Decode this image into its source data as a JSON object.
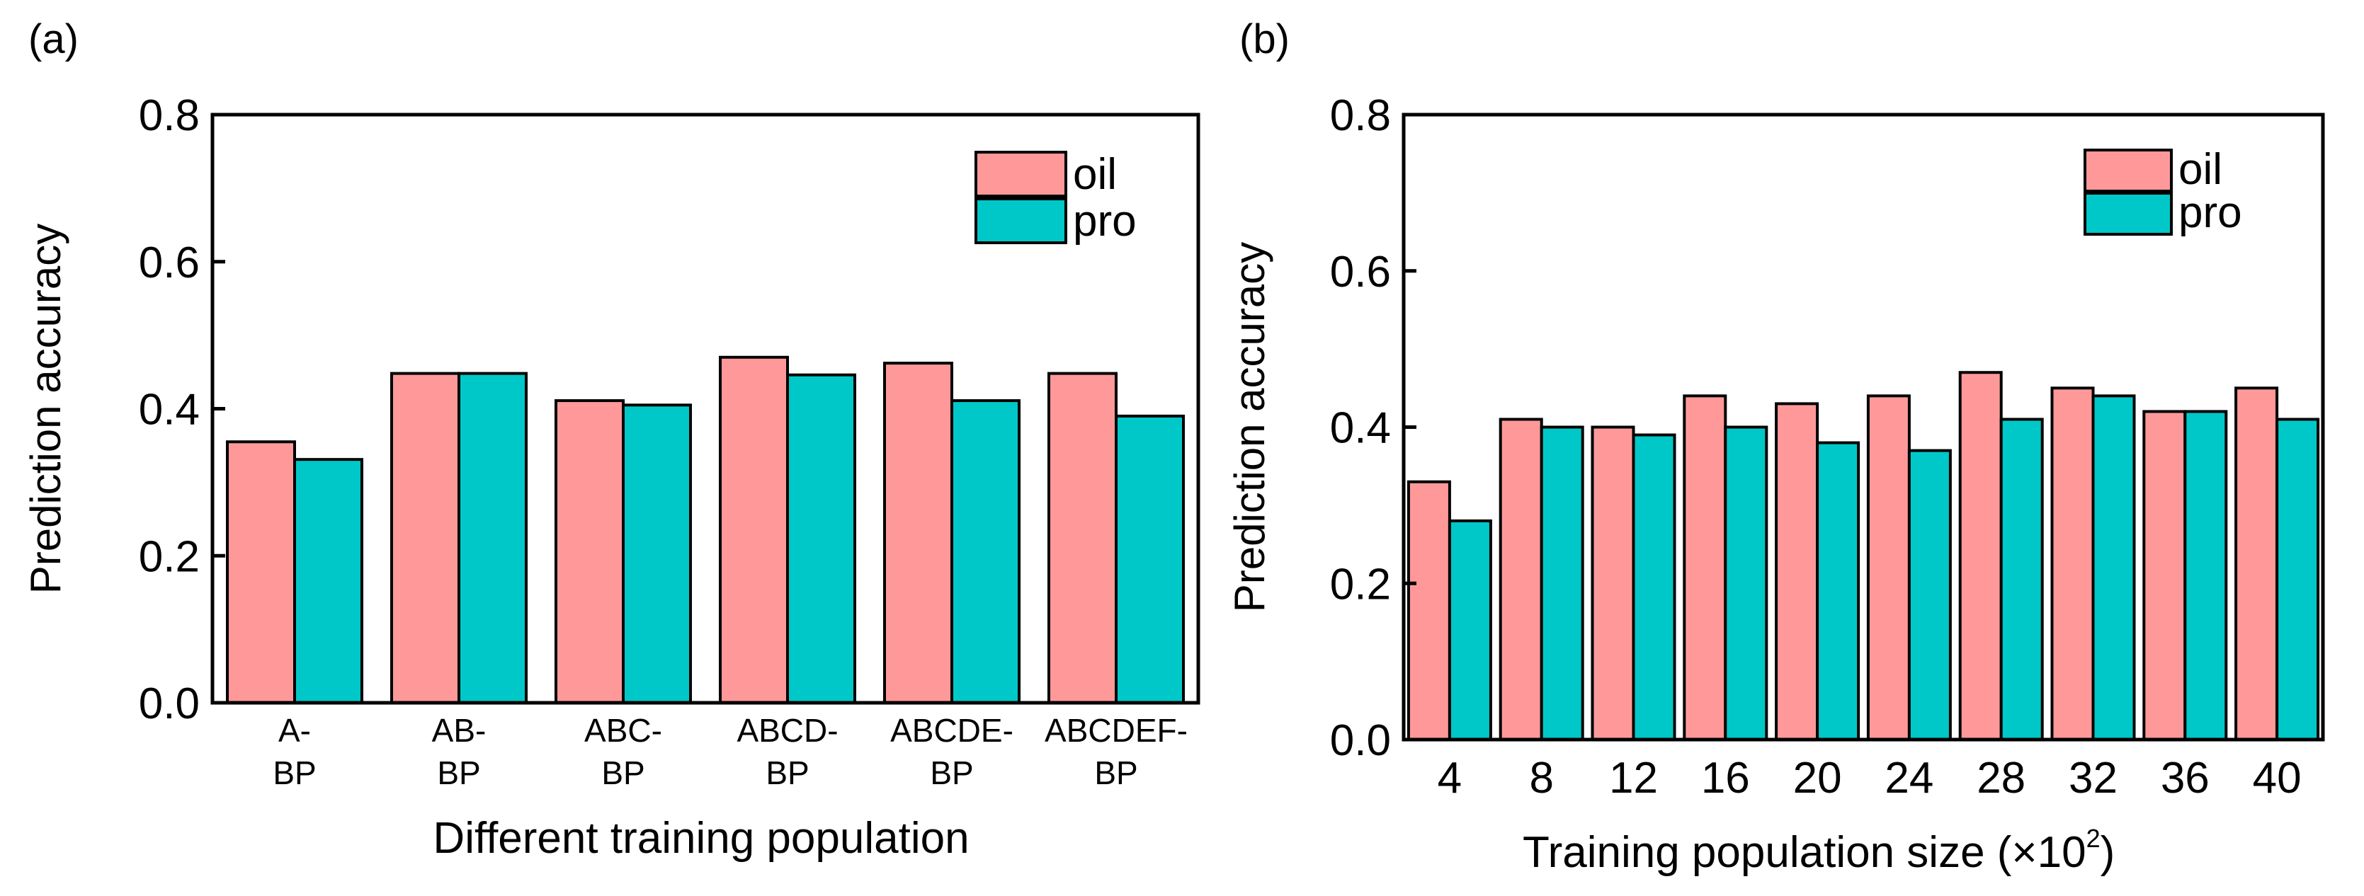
{
  "colors": {
    "oil": "#FF9999",
    "pro": "#00C8C8",
    "edge": "#000000",
    "background": "#FFFFFF"
  },
  "chart_data": [
    {
      "panel_label": "(a)",
      "type": "bar",
      "categories": [
        [
          "A-",
          "BP"
        ],
        [
          "AB-",
          "BP"
        ],
        [
          "ABC-",
          "BP"
        ],
        [
          "ABCD-",
          "BP"
        ],
        [
          "ABCDE-",
          "BP"
        ],
        [
          "ABCDEF-",
          "BP"
        ]
      ],
      "series": [
        {
          "name": "oil",
          "values": [
            0.355,
            0.448,
            0.411,
            0.47,
            0.462,
            0.448
          ]
        },
        {
          "name": "pro",
          "values": [
            0.331,
            0.448,
            0.405,
            0.446,
            0.411,
            0.39
          ]
        }
      ],
      "xlabel": "Different training population",
      "ylabel": "Prediction accuracy",
      "ylim": [
        0,
        0.8
      ],
      "yticks": [
        "0.0",
        "0.2",
        "0.4",
        "0.6",
        "0.8"
      ],
      "legend": "top-right",
      "grid": false
    },
    {
      "panel_label": "(b)",
      "type": "bar",
      "categories": [
        [
          "4"
        ],
        [
          "8"
        ],
        [
          "12"
        ],
        [
          "16"
        ],
        [
          "20"
        ],
        [
          "24"
        ],
        [
          "28"
        ],
        [
          "32"
        ],
        [
          "36"
        ],
        [
          "40"
        ]
      ],
      "series": [
        {
          "name": "oil",
          "values": [
            0.33,
            0.41,
            0.4,
            0.44,
            0.43,
            0.44,
            0.47,
            0.45,
            0.42,
            0.45
          ]
        },
        {
          "name": "pro",
          "values": [
            0.28,
            0.4,
            0.39,
            0.4,
            0.38,
            0.37,
            0.41,
            0.44,
            0.42,
            0.41
          ]
        }
      ],
      "xlabel": "Training population size (×10",
      "xlabel_superscript": "2",
      "xlabel_suffix": ")",
      "ylabel": "Prediction accuracy",
      "ylim": [
        0,
        0.8
      ],
      "yticks": [
        "0.0",
        "0.2",
        "0.4",
        "0.6",
        "0.8"
      ],
      "legend": "top-right",
      "grid": false
    }
  ]
}
